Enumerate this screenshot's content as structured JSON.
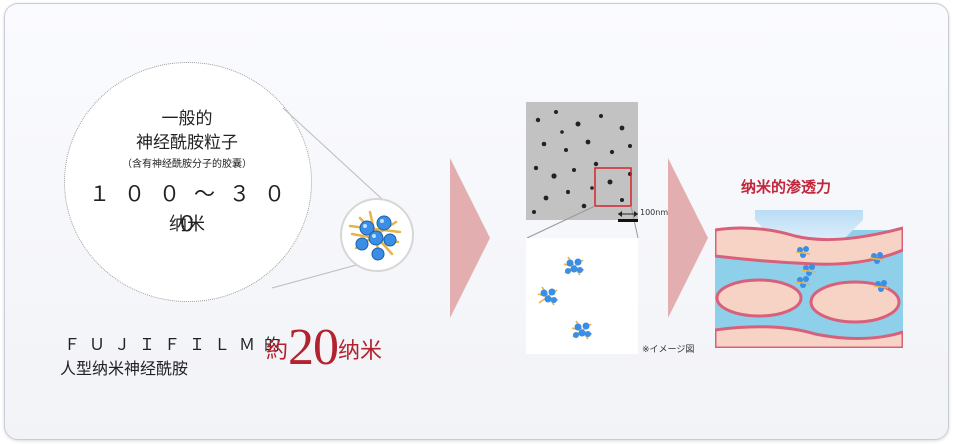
{
  "circle": {
    "line1": "一般的",
    "line2": "神经酰胺粒子",
    "line3": "（含有神经酰胺分子的胶囊）",
    "line4": "１００～３００",
    "line5": "纳米"
  },
  "fujifilm": {
    "line1": "ＦＵＪＩＦＩＬＭ的",
    "line2": "人型纳米神经酰胺",
    "approx_prefix": "約",
    "approx_number": "20",
    "approx_suffix": "纳米"
  },
  "micrograph": {
    "scale_label": "100nm",
    "note": "※イメージ図"
  },
  "penetration": {
    "title": "纳米的渗透力"
  },
  "colors": {
    "accent_red": "#b2232f",
    "arrow_pink": "#e2aeb0",
    "skin_blue": "#8ed0ea",
    "cell_pink": "#f7d3c6",
    "cell_border": "#d9607a",
    "particle_blue": "#3a8ee6",
    "particle_gold": "#e6b54a"
  }
}
